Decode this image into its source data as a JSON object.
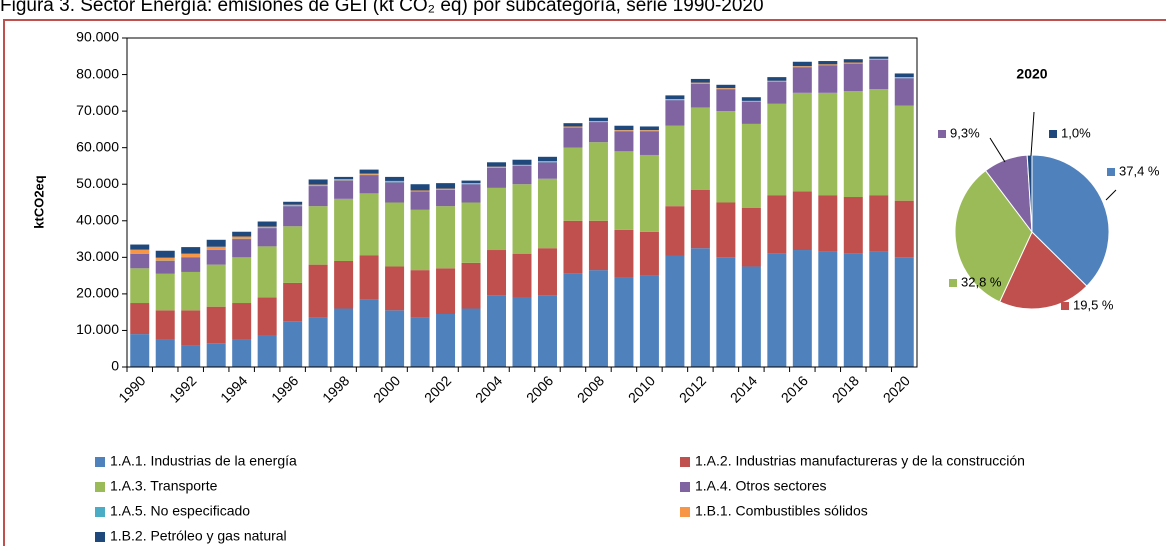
{
  "chart_data": [
    {
      "type": "bar",
      "stacked": true,
      "title": "Figura 3. Sector Energía: emisiones de GEI (kt CO₂ eq) por subcategoría, serie 1990-2020",
      "ylabel": "ktCO2eq",
      "categories": [
        "1990",
        null,
        "1992",
        null,
        "1994",
        null,
        "1996",
        null,
        "1998",
        null,
        "2000",
        null,
        "2002",
        null,
        "2004",
        null,
        "2006",
        null,
        "2008",
        null,
        "2010",
        null,
        "2012",
        null,
        "2014",
        null,
        "2016",
        null,
        "2018",
        null,
        "2020"
      ],
      "ylim": [
        0,
        90000
      ],
      "yticks": [
        0,
        {
          "value": 10000,
          "label": "10.000"
        },
        {
          "value": 20000,
          "label": "20.000"
        },
        {
          "value": 30000,
          "label": "30.000"
        },
        {
          "value": 40000,
          "label": "40.000"
        },
        {
          "value": 50000,
          "label": "50.000"
        },
        {
          "value": 60000,
          "label": "60.000"
        },
        {
          "value": 70000,
          "label": "70.000"
        },
        {
          "value": 80000,
          "label": "80.000"
        },
        {
          "value": 90000,
          "label": "90.000"
        }
      ],
      "grid": false,
      "series": [
        {
          "name": "1.A.1. Industrias de la energía",
          "color": "#4f81bd",
          "values": [
            9000,
            7500,
            6000,
            6500,
            7500,
            8500,
            12500,
            13500,
            16000,
            18500,
            15500,
            13500,
            14500,
            16000,
            19500,
            19000,
            19500,
            25500,
            26500,
            24500,
            25000,
            30500,
            32500,
            30000,
            27500,
            31000,
            32000,
            31500,
            31000,
            31500,
            30000
          ]
        },
        {
          "name": "1.A.2. Industrias manufactureras y de la construcción",
          "color": "#c0504d",
          "values": [
            8500,
            8000,
            9500,
            10000,
            10000,
            10500,
            10500,
            14500,
            13000,
            12000,
            12000,
            13000,
            12500,
            12500,
            12500,
            12000,
            13000,
            14500,
            13500,
            13000,
            12000,
            13500,
            16000,
            15000,
            16000,
            16000,
            16000,
            15500,
            15500,
            15500,
            15500
          ]
        },
        {
          "name": "1.A.3. Transporte",
          "color": "#9bbb59",
          "values": [
            9500,
            10000,
            10500,
            11500,
            12500,
            14000,
            15500,
            16000,
            17000,
            17000,
            17500,
            16500,
            17000,
            16500,
            17000,
            19000,
            19000,
            20000,
            21500,
            21500,
            21000,
            22000,
            22500,
            25000,
            23000,
            25000,
            27000,
            28000,
            29000,
            29000,
            26000
          ]
        },
        {
          "name": "1.A.4. Otros sectores",
          "color": "#8064a2",
          "values": [
            4000,
            3500,
            4000,
            4000,
            5000,
            5000,
            5500,
            5500,
            5000,
            5000,
            5500,
            5000,
            4500,
            5000,
            5500,
            5000,
            4500,
            5500,
            5500,
            5500,
            6500,
            7000,
            6500,
            6000,
            6000,
            6000,
            7000,
            7500,
            7500,
            8000,
            7500
          ]
        },
        {
          "name": "1.A.5. No especificado",
          "color": "#4bacc6",
          "values": [
            100,
            100,
            100,
            100,
            100,
            100,
            100,
            100,
            100,
            100,
            100,
            100,
            100,
            100,
            100,
            100,
            100,
            100,
            100,
            100,
            100,
            100,
            100,
            100,
            100,
            100,
            100,
            100,
            100,
            100,
            100
          ]
        },
        {
          "name": "1.B.1. Combustibles sólidos",
          "color": "#f79646",
          "values": [
            1000,
            800,
            900,
            800,
            600,
            300,
            300,
            300,
            300,
            300,
            300,
            200,
            200,
            200,
            200,
            200,
            200,
            200,
            200,
            200,
            200,
            200,
            200,
            200,
            200,
            200,
            200,
            200,
            200,
            200,
            200
          ]
        },
        {
          "name": "1.B.2. Petróleo y gas natural",
          "color": "#1f497d",
          "values": [
            1400,
            1900,
            1800,
            1900,
            1300,
            1400,
            800,
            1400,
            600,
            1100,
            1100,
            1700,
            1500,
            700,
            1200,
            1400,
            1200,
            900,
            900,
            1200,
            1000,
            1000,
            1000,
            900,
            1000,
            1000,
            1200,
            900,
            900,
            600,
            1000
          ]
        }
      ]
    },
    {
      "type": "pie",
      "title": "2020",
      "values": [
        37.4,
        19.5,
        32.8,
        9.3,
        1.0
      ],
      "value_labels": [
        "37,4 %",
        "19,5 %",
        "32,8 %",
        "9,3%",
        "1,0%"
      ],
      "colors": [
        "#4f81bd",
        "#c0504d",
        "#9bbb59",
        "#8064a2",
        "#1f497d"
      ]
    }
  ]
}
